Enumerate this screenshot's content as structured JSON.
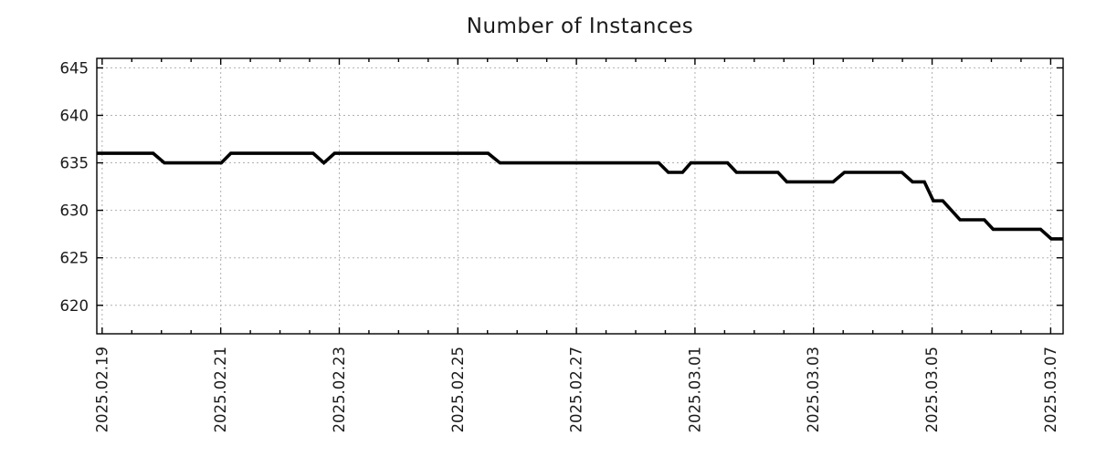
{
  "chart_data": {
    "type": "line",
    "title": "Number of Instances",
    "xlabel": "",
    "ylabel": "",
    "x_unit": "days since 2025-02-19 00:00",
    "xlim": [
      -0.09,
      16.21
    ],
    "ylim": [
      617,
      646
    ],
    "grid": "dotted at major ticks, both axes",
    "legend_position": "none",
    "y_ticks": [
      620,
      625,
      630,
      635,
      640,
      645
    ],
    "x_ticks_major": [
      {
        "t": 0,
        "label": "2025.02.19"
      },
      {
        "t": 2,
        "label": "2025.02.21"
      },
      {
        "t": 4,
        "label": "2025.02.23"
      },
      {
        "t": 6,
        "label": "2025.02.25"
      },
      {
        "t": 8,
        "label": "2025.02.27"
      },
      {
        "t": 10,
        "label": "2025.03.01"
      },
      {
        "t": 12,
        "label": "2025.03.03"
      },
      {
        "t": 14,
        "label": "2025.03.05"
      },
      {
        "t": 16,
        "label": "2025.03.07"
      }
    ],
    "x_minor_step": 0.5,
    "series": [
      {
        "name": "instances",
        "points": [
          [
            -0.09,
            636
          ],
          [
            0.86,
            636
          ],
          [
            1.05,
            635
          ],
          [
            2.01,
            635
          ],
          [
            2.17,
            636
          ],
          [
            3.56,
            636
          ],
          [
            3.74,
            635
          ],
          [
            3.92,
            636
          ],
          [
            6.51,
            636
          ],
          [
            6.71,
            635
          ],
          [
            9.39,
            635
          ],
          [
            9.55,
            634
          ],
          [
            9.79,
            634
          ],
          [
            9.93,
            635
          ],
          [
            10.55,
            635
          ],
          [
            10.7,
            634
          ],
          [
            11.4,
            634
          ],
          [
            11.55,
            633
          ],
          [
            12.33,
            633
          ],
          [
            12.52,
            634
          ],
          [
            13.49,
            634
          ],
          [
            13.67,
            633
          ],
          [
            13.87,
            633
          ],
          [
            14.02,
            631
          ],
          [
            14.18,
            631
          ],
          [
            14.47,
            629
          ],
          [
            14.88,
            629
          ],
          [
            15.03,
            628
          ],
          [
            15.83,
            628
          ],
          [
            16.01,
            627
          ],
          [
            16.21,
            627
          ]
        ]
      }
    ],
    "colors": {
      "line": "#000000",
      "grid": "#b0b0b0",
      "frame": "#000000",
      "text": "#1a1a1a",
      "background": "#ffffff"
    }
  }
}
